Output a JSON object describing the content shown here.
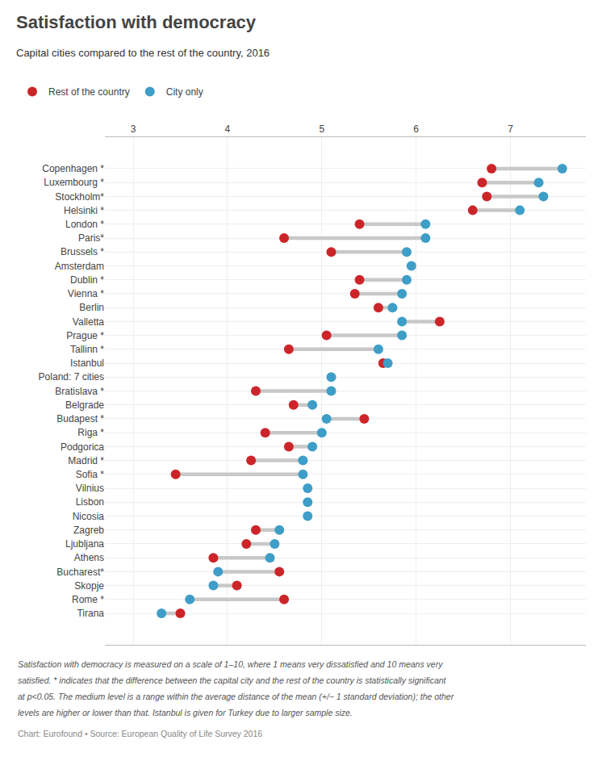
{
  "chart_data": {
    "type": "dumbbell",
    "title": "Satisfaction with democracy",
    "subtitle": "Capital cities compared to the rest of the country, 2016",
    "categories": [
      "Copenhagen *",
      "Luxembourg *",
      "Stockholm*",
      "Helsinki *",
      "London *",
      "Paris*",
      "Brussels *",
      "Amsterdam",
      "Dublin *",
      "Vienna *",
      "Berlin",
      "Valletta",
      "Prague *",
      "Tallinn *",
      "Istanbul",
      "Poland: 7 cities",
      "Bratislava *",
      "Belgrade",
      "Budapest *",
      "Riga *",
      "Podgorica",
      "Madrid *",
      "Sofia *",
      "Vilnius",
      "Lisbon",
      "Nicosia",
      "Zagreb",
      "Ljubljana",
      "Athens",
      "Bucharest*",
      "Skopje",
      "Rome *",
      "Tirana"
    ],
    "series": [
      {
        "name": "Rest of the country",
        "color": "#cc2529",
        "values": [
          6.8,
          6.7,
          6.75,
          6.6,
          5.4,
          4.6,
          5.1,
          null,
          5.4,
          5.35,
          5.6,
          6.25,
          5.05,
          4.65,
          5.65,
          null,
          4.3,
          4.7,
          5.45,
          4.4,
          4.65,
          4.25,
          3.45,
          null,
          null,
          null,
          4.3,
          4.2,
          3.85,
          4.55,
          4.1,
          4.6,
          3.5
        ]
      },
      {
        "name": "City only",
        "color": "#3e9ec7",
        "values": [
          7.55,
          7.3,
          7.35,
          7.1,
          6.1,
          6.1,
          5.9,
          5.95,
          5.9,
          5.85,
          5.75,
          5.85,
          5.85,
          5.6,
          5.7,
          5.1,
          5.1,
          4.9,
          5.05,
          5.0,
          4.9,
          4.8,
          4.8,
          4.85,
          4.85,
          4.85,
          4.55,
          4.5,
          4.45,
          3.9,
          3.85,
          3.6,
          3.3
        ]
      }
    ],
    "xlim": [
      2.7,
      7.8
    ],
    "xticks": [
      3,
      4,
      5,
      6,
      7
    ],
    "grid": true,
    "legend": "top",
    "annotations": [
      "Satisfaction with democracy is measured on a scale of 1–10, where 1 means very dissatisfied and 10 means very",
      "satisfied. * indicates that the difference between the capital city and the rest of the country is statistically significant",
      "at p<0.05. The medium level is a range within the average distance of the mean (+/− 1 standard deviation); the other",
      "levels are higher or lower than that. Istanbul is given for Turkey due to larger sample size.",
      "Chart: Eurofound • Source: European Quality of Life Survey 2016"
    ]
  }
}
